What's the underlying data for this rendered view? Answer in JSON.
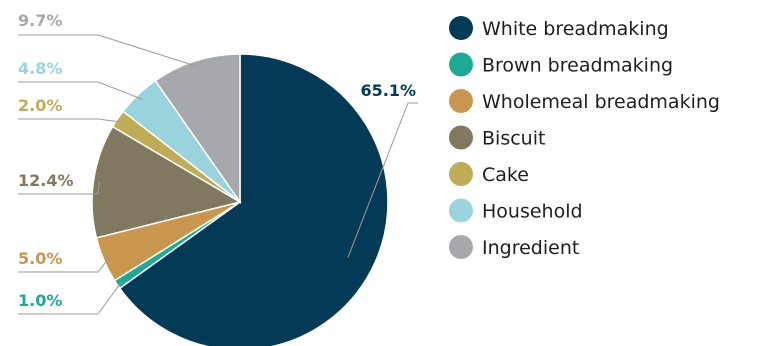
{
  "chart_data": {
    "type": "pie",
    "title": "",
    "slices": [
      {
        "label": "White breadmaking",
        "value": 65.1,
        "value_label": "65.1%",
        "color": "#033a55"
      },
      {
        "label": "Brown breadmaking",
        "value": 1.0,
        "value_label": "1.0%",
        "color": "#1ea896"
      },
      {
        "label": "Wholemeal breadmaking",
        "value": 5.0,
        "value_label": "5.0%",
        "color": "#c9964f"
      },
      {
        "label": "Biscuit",
        "value": 12.4,
        "value_label": "12.4%",
        "color": "#80785f"
      },
      {
        "label": "Cake",
        "value": 2.0,
        "value_label": "2.0%",
        "color": "#bfac56"
      },
      {
        "label": "Household",
        "value": 4.8,
        "value_label": "4.8%",
        "color": "#9ad3dc"
      },
      {
        "label": "Ingredient",
        "value": 9.7,
        "value_label": "9.7%",
        "color": "#a6a8ab"
      }
    ],
    "legend_position": "right",
    "start_angle": "top, clockwise"
  }
}
